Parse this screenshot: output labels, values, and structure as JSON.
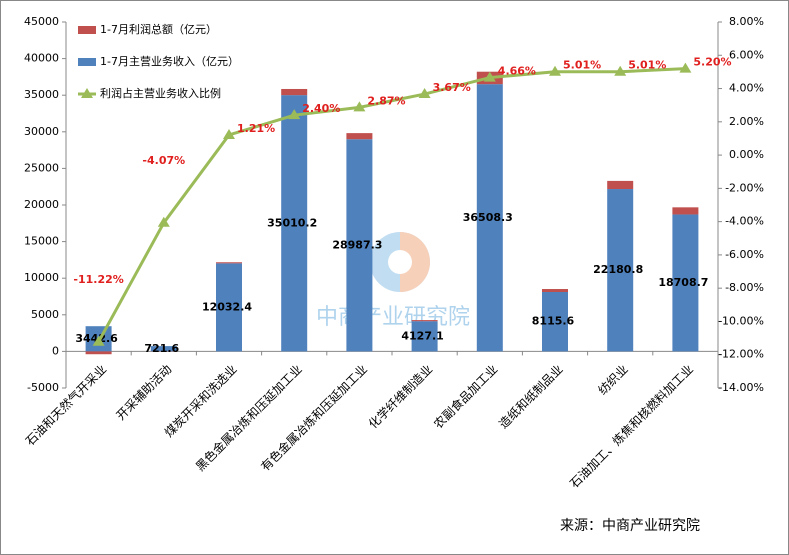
{
  "chart_data": {
    "type": "bar",
    "categories": [
      "石油和天然气开采业",
      "开采辅助活动",
      "煤炭开采和洗选业",
      "黑色金属冶炼和压延加工业",
      "有色金属冶炼和压延加工业",
      "化学纤维制造业",
      "农副食品加工业",
      "造纸和纸制品业",
      "纺织业",
      "石油加工、炼焦和核燃料加工业"
    ],
    "series": [
      {
        "name": "1-7月利润总额（亿元）",
        "type": "bar",
        "color": "#c0504d",
        "values": [
          -386,
          -29,
          146,
          840,
          832,
          151,
          1701,
          407,
          1111,
          973
        ]
      },
      {
        "name": "1-7月主营业务收入（亿元）",
        "type": "bar",
        "color": "#4f81bd",
        "values": [
          3442.6,
          721.6,
          12032.4,
          35010.2,
          28987.3,
          4127.1,
          36508.3,
          8115.6,
          22180.8,
          18708.7
        ]
      },
      {
        "name": "利润占主营业务收入比例",
        "type": "line",
        "axis": "y2",
        "color": "#9bbb59",
        "values": [
          -11.22,
          -4.07,
          1.21,
          2.4,
          2.87,
          3.67,
          4.66,
          5.01,
          5.01,
          5.2
        ],
        "value_labels": [
          "-11.22%",
          "-4.07%",
          "1.21%",
          "2.40%",
          "2.87%",
          "3.67%",
          "4.66%",
          "5.01%",
          "5.01%",
          "5.20%"
        ]
      }
    ],
    "ylim": [
      -5000,
      45000
    ],
    "yticks": [
      -5000,
      0,
      5000,
      10000,
      15000,
      20000,
      25000,
      30000,
      35000,
      40000,
      45000
    ],
    "y2lim": [
      -14,
      8
    ],
    "y2ticks": [
      {
        "value": -14,
        "label": "-14.00%"
      },
      {
        "value": -12,
        "label": "-12.00%"
      },
      {
        "value": -10,
        "label": "-10.00%"
      },
      {
        "value": -8,
        "label": "-8.00%"
      },
      {
        "value": -6,
        "label": "-6.00%"
      },
      {
        "value": -4,
        "label": "-4.00%"
      },
      {
        "value": -2,
        "label": "-2.00%"
      },
      {
        "value": 0,
        "label": "0.00%"
      },
      {
        "value": 2,
        "label": "2.00%"
      },
      {
        "value": 4,
        "label": "4.00%"
      },
      {
        "value": 6,
        "label": "6.00%"
      },
      {
        "value": 8,
        "label": "8.00%"
      }
    ],
    "legend": "upper left",
    "source": "来源：中商产业研究院",
    "watermark": "中商产业研究院"
  }
}
